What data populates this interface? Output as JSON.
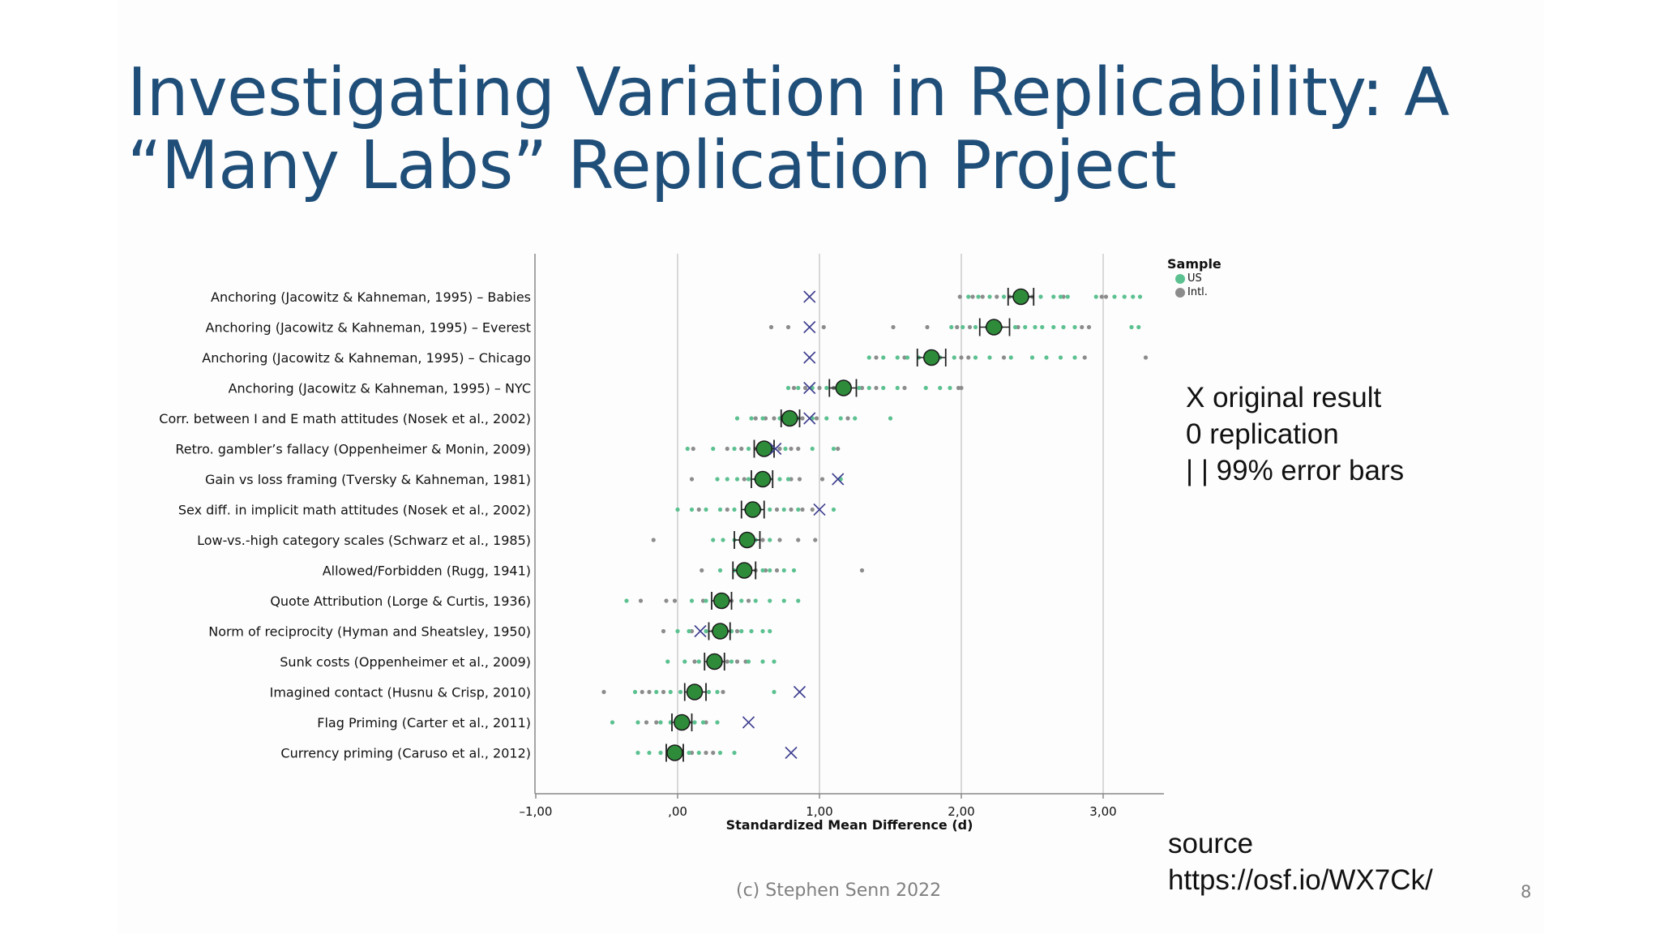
{
  "slide": {
    "title_line1": "Investigating Variation in Replicability: A",
    "title_line2": "“Many Labs” Replication Project",
    "notes": [
      "X original result",
      "0 replication",
      "|  | 99% error bars"
    ],
    "source_label": "source",
    "source_url": "https://osf.io/WX7Ck/",
    "footer": "(c) Stephen Senn 2022",
    "page_number": "8"
  },
  "chart_data": {
    "type": "scatter",
    "xlabel": "Standardized Mean Difference (d)",
    "xlim": [
      -1,
      3.45
    ],
    "x_ticks": [
      -1,
      0,
      1,
      2,
      3
    ],
    "x_tick_labels": [
      "–1,00",
      ",00",
      "1,00",
      "2,00",
      "3,00"
    ],
    "grid_x": [
      0,
      1,
      2,
      3
    ],
    "legend": {
      "title": "Sample",
      "position": "top-right",
      "entries": [
        {
          "name": "US",
          "color": "#5cc190"
        },
        {
          "name": "Intl.",
          "color": "#8c8c8c"
        }
      ]
    },
    "colors": {
      "replication": "#2e8b3a",
      "original": "#3d3d8f",
      "us": "#5cc190",
      "intl": "#8c8c8c",
      "axis": "#888888",
      "grid": "#cccccc"
    },
    "effects": [
      {
        "label": "Anchoring (Jacowitz & Kahneman, 1995) – Babies",
        "replication": 2.42,
        "ci": [
          2.33,
          2.51
        ],
        "original": 0.93,
        "us": [
          2.05,
          2.12,
          2.2,
          2.3,
          2.37,
          2.47,
          2.56,
          2.65,
          2.7,
          2.75,
          2.95,
          3.08,
          3.15,
          3.21,
          3.26
        ],
        "intl": [
          1.99,
          2.08,
          2.15,
          2.25,
          2.34,
          2.5,
          2.72,
          2.99,
          3.02
        ]
      },
      {
        "label": "Anchoring (Jacowitz & Kahneman, 1995) – Everest",
        "replication": 2.23,
        "ci": [
          2.13,
          2.34
        ],
        "original": 0.93,
        "us": [
          1.93,
          2.01,
          2.1,
          2.18,
          2.28,
          2.38,
          2.45,
          2.52,
          2.57,
          2.65,
          2.72,
          2.8,
          3.2,
          3.25
        ],
        "intl": [
          0.66,
          0.78,
          1.03,
          1.52,
          1.76,
          1.97,
          2.06,
          2.2,
          2.4,
          2.85,
          2.9
        ]
      },
      {
        "label": "Anchoring (Jacowitz & Kahneman, 1995) – Chicago",
        "replication": 1.79,
        "ci": [
          1.69,
          1.89
        ],
        "original": 0.93,
        "us": [
          1.35,
          1.45,
          1.55,
          1.62,
          1.7,
          1.85,
          1.95,
          2.1,
          2.2,
          2.35,
          2.5,
          2.6,
          2.7,
          2.8
        ],
        "intl": [
          1.4,
          1.6,
          1.75,
          1.85,
          2.0,
          2.05,
          2.3,
          2.87,
          3.3
        ]
      },
      {
        "label": "Anchoring (Jacowitz & Kahneman, 1995) – NYC",
        "replication": 1.17,
        "ci": [
          1.07,
          1.26
        ],
        "original": 0.93,
        "us": [
          0.78,
          0.85,
          0.95,
          1.05,
          1.12,
          1.2,
          1.28,
          1.35,
          1.45,
          1.55,
          1.75,
          1.85,
          1.92
        ],
        "intl": [
          0.82,
          0.9,
          1.0,
          1.1,
          1.3,
          1.4,
          1.6,
          1.98,
          2.0
        ]
      },
      {
        "label": "Corr. between I and E math attitudes (Nosek et al., 2002)",
        "replication": 0.79,
        "ci": [
          0.73,
          0.86
        ],
        "original": 0.93,
        "us": [
          0.42,
          0.52,
          0.6,
          0.72,
          0.85,
          0.95,
          1.05,
          1.15,
          1.25,
          1.5
        ],
        "intl": [
          0.55,
          0.62,
          0.68,
          0.75,
          0.82,
          0.88,
          0.98,
          1.2
        ]
      },
      {
        "label": "Retro. gambler’s fallacy (Oppenheimer & Monin, 2009)",
        "replication": 0.61,
        "ci": [
          0.54,
          0.68
        ],
        "original": 0.69,
        "us": [
          0.07,
          0.25,
          0.4,
          0.5,
          0.6,
          0.67,
          0.76,
          0.95,
          1.1
        ],
        "intl": [
          0.11,
          0.35,
          0.45,
          0.55,
          0.72,
          0.8,
          0.85,
          1.13
        ]
      },
      {
        "label": "Gain vs loss framing (Tversky & Kahneman, 1981)",
        "replication": 0.6,
        "ci": [
          0.52,
          0.67
        ],
        "original": 1.13,
        "us": [
          0.28,
          0.35,
          0.42,
          0.5,
          0.55,
          0.65,
          0.72,
          0.78,
          1.15
        ],
        "intl": [
          0.1,
          0.47,
          0.63,
          0.8,
          0.86,
          1.02
        ]
      },
      {
        "label": "Sex diff. in implicit math attitudes (Nosek et al., 2002)",
        "replication": 0.53,
        "ci": [
          0.45,
          0.61
        ],
        "original": 1.0,
        "us": [
          0.0,
          0.1,
          0.2,
          0.3,
          0.4,
          0.48,
          0.58,
          0.65,
          0.75,
          0.85,
          1.1
        ],
        "intl": [
          0.15,
          0.35,
          0.55,
          0.7,
          0.8,
          0.88,
          0.95
        ]
      },
      {
        "label": "Low-vs.-high category scales (Schwarz et al., 1985)",
        "replication": 0.49,
        "ci": [
          0.4,
          0.58
        ],
        "original": null,
        "us": [
          0.25,
          0.32,
          0.4,
          0.5,
          0.55,
          0.65
        ],
        "intl": [
          -0.17,
          0.45,
          0.6,
          0.72,
          0.85,
          0.97
        ]
      },
      {
        "label": "Allowed/Forbidden (Rugg, 1941)",
        "replication": 0.47,
        "ci": [
          0.39,
          0.55
        ],
        "original": null,
        "us": [
          0.3,
          0.4,
          0.5,
          0.6,
          0.65,
          0.75,
          0.82
        ],
        "intl": [
          0.17,
          0.45,
          0.55,
          0.62,
          0.7,
          1.3
        ]
      },
      {
        "label": "Quote Attribution (Lorge & Curtis, 1936)",
        "replication": 0.31,
        "ci": [
          0.24,
          0.38
        ],
        "original": null,
        "us": [
          -0.36,
          0.1,
          0.2,
          0.28,
          0.35,
          0.45,
          0.55,
          0.65,
          0.75,
          0.85
        ],
        "intl": [
          -0.26,
          -0.08,
          -0.02,
          0.18,
          0.38,
          0.5
        ]
      },
      {
        "label": "Norm of reciprocity (Hyman and Sheatsley, 1950)",
        "replication": 0.3,
        "ci": [
          0.22,
          0.37
        ],
        "original": 0.16,
        "us": [
          0.0,
          0.08,
          0.2,
          0.38,
          0.45,
          0.52,
          0.6,
          0.65
        ],
        "intl": [
          -0.1,
          0.1,
          0.25,
          0.35,
          0.42
        ]
      },
      {
        "label": "Sunk costs (Oppenheimer et al., 2009)",
        "replication": 0.26,
        "ci": [
          0.19,
          0.33
        ],
        "original": null,
        "us": [
          -0.07,
          0.05,
          0.15,
          0.22,
          0.3,
          0.38,
          0.5,
          0.6,
          0.68
        ],
        "intl": [
          0.12,
          0.35,
          0.42,
          0.48
        ]
      },
      {
        "label": "Imagined contact (Husnu & Crisp, 2010)",
        "replication": 0.12,
        "ci": [
          0.05,
          0.2
        ],
        "original": 0.86,
        "us": [
          -0.3,
          -0.15,
          -0.05,
          0.02,
          0.15,
          0.22,
          0.28,
          0.68
        ],
        "intl": [
          -0.52,
          -0.25,
          -0.2,
          -0.1,
          0.1,
          0.32
        ]
      },
      {
        "label": "Flag Priming (Carter et al., 2011)",
        "replication": 0.03,
        "ci": [
          -0.04,
          0.1
        ],
        "original": 0.5,
        "us": [
          -0.46,
          -0.28,
          -0.12,
          -0.05,
          0.05,
          0.12,
          0.18,
          0.28
        ],
        "intl": [
          -0.22,
          -0.15,
          0.08,
          0.2
        ]
      },
      {
        "label": "Currency priming (Caruso et al., 2012)",
        "replication": -0.02,
        "ci": [
          -0.08,
          0.04
        ],
        "original": 0.8,
        "us": [
          -0.28,
          -0.2,
          -0.12,
          0.08,
          0.15,
          0.3,
          0.4
        ],
        "intl": [
          -0.05,
          0.02,
          0.1,
          0.2,
          0.25
        ]
      }
    ]
  }
}
